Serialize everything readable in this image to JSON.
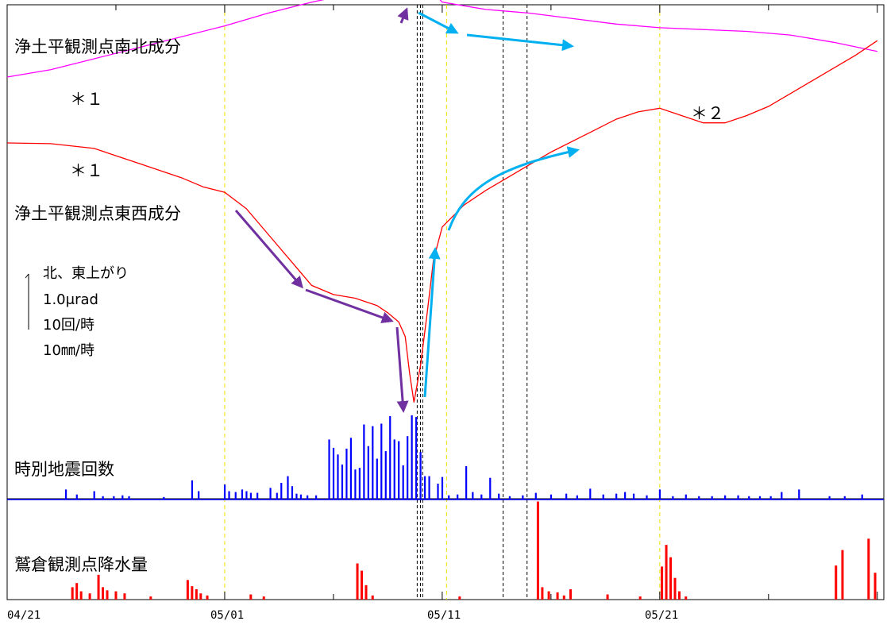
{
  "chart_data": {
    "type": "line",
    "x_axis": {
      "start": "04/21",
      "end": "06/01",
      "tick_labels": [
        "04/21",
        "05/01",
        "05/11",
        "05/21"
      ],
      "tick_days": [
        0,
        10,
        20,
        30
      ]
    },
    "guides": {
      "yellow_dashed_days": [
        10,
        20.2,
        30
      ],
      "black_dashed_days": [
        18.85,
        19.0,
        19.1,
        22.8,
        23.9
      ],
      "colors": {
        "yellow": "#f0e000",
        "black": "#000000"
      }
    },
    "series": [
      {
        "name": "浄土平観測点南北成分",
        "color": "#ff00ff",
        "unit": "µrad",
        "x": [
          0,
          2,
          4,
          6,
          8,
          10,
          12,
          14,
          16,
          17,
          18,
          18.5,
          18.9,
          19.3,
          20,
          21,
          22,
          23,
          24,
          26,
          28,
          30,
          32,
          34,
          36,
          38,
          40
        ],
        "y": [
          0,
          0.2,
          0.5,
          0.8,
          1.1,
          1.4,
          1.75,
          2.05,
          2.3,
          2.45,
          2.55,
          2.65,
          2.9,
          2.5,
          2.05,
          1.95,
          1.85,
          1.8,
          1.75,
          1.6,
          1.45,
          1.35,
          1.3,
          1.25,
          1.15,
          0.95,
          0.7
        ]
      },
      {
        "name": "浄土平観測点東西成分",
        "color": "#ff0000",
        "unit": "µrad",
        "x": [
          0,
          2,
          4,
          5,
          6,
          7,
          8,
          9,
          10,
          11,
          12,
          13,
          14,
          15,
          16,
          17,
          17.5,
          18,
          18.3,
          18.5,
          18.7,
          19.0,
          19.3,
          19.6,
          20,
          21,
          22,
          23,
          24,
          25,
          26,
          27,
          28,
          29,
          30,
          31,
          32,
          33,
          34,
          35,
          36,
          37,
          38,
          39,
          40
        ],
        "y": [
          5.5,
          5.48,
          5.35,
          5.15,
          4.95,
          4.75,
          4.55,
          4.3,
          4.15,
          3.7,
          3.0,
          2.3,
          1.6,
          1.35,
          1.25,
          1.05,
          0.85,
          0.6,
          0.2,
          -0.8,
          -1.6,
          -0.6,
          0.8,
          2.3,
          3.2,
          3.8,
          4.2,
          4.55,
          4.9,
          5.25,
          5.55,
          5.85,
          6.15,
          6.35,
          6.45,
          6.25,
          6.05,
          6.05,
          6.25,
          6.5,
          6.85,
          7.2,
          7.55,
          7.9,
          8.3
        ]
      },
      {
        "name": "時別地震回数",
        "color": "#0000ff",
        "unit": "回/時",
        "x": [
          2.7,
          3.2,
          4.0,
          4.4,
          4.9,
          5.3,
          5.6,
          7.2,
          8.5,
          8.8,
          10.0,
          10.2,
          10.5,
          10.8,
          11.0,
          11.2,
          11.5,
          12.1,
          12.4,
          12.6,
          12.9,
          13.1,
          13.3,
          13.5,
          13.8,
          14.2,
          14.8,
          15.0,
          15.2,
          15.4,
          15.6,
          15.8,
          16.0,
          16.2,
          16.4,
          16.6,
          16.8,
          17.0,
          17.2,
          17.4,
          17.6,
          17.8,
          18.0,
          18.2,
          18.4,
          18.6,
          18.8,
          19.0,
          19.2,
          19.4,
          19.8,
          20.0,
          20.3,
          20.7,
          21.1,
          21.4,
          21.8,
          22.2,
          22.6,
          23.1,
          23.7,
          24.3,
          25.0,
          25.7,
          26.2,
          26.8,
          27.4,
          28.0,
          28.4,
          28.8,
          29.4,
          30.0,
          30.6,
          31.2,
          31.8,
          32.4,
          33.0,
          33.6,
          34.1,
          34.6,
          35.1,
          35.6,
          36.4,
          37.8,
          38.5,
          39.3
        ],
        "values": [
          1.2,
          0.6,
          1.0,
          0.4,
          0.4,
          0.5,
          0.4,
          0.3,
          2.3,
          1.0,
          1.8,
          1.0,
          0.9,
          1.2,
          1.0,
          0.8,
          0.8,
          1.4,
          0.8,
          2.0,
          2.8,
          1.6,
          0.7,
          0.6,
          0.5,
          0.5,
          7.2,
          6.2,
          5.4,
          4.2,
          6.1,
          7.4,
          3.6,
          3.8,
          9.0,
          6.4,
          8.8,
          4.9,
          9.1,
          5.8,
          10.0,
          7.2,
          7.0,
          4.1,
          7.6,
          10.1,
          9.9,
          5.7,
          2.8,
          2.8,
          1.9,
          2.7,
          0.5,
          0.6,
          4.0,
          0.9,
          0.6,
          2.6,
          0.7,
          0.4,
          0.5,
          0.8,
          0.6,
          0.7,
          0.5,
          1.3,
          0.6,
          0.7,
          0.9,
          0.7,
          0.5,
          1.2,
          0.4,
          0.6,
          0.4,
          0.4,
          0.5,
          0.5,
          0.4,
          0.4,
          0.4,
          0.9,
          1.2,
          0.4,
          0.4,
          0.6
        ]
      },
      {
        "name": "鷲倉観測点降水量",
        "color": "#ff0000",
        "unit": "mm/時",
        "x": [
          3.0,
          3.2,
          3.4,
          3.8,
          4.2,
          4.4,
          4.6,
          5.0,
          5.4,
          6.6,
          8.3,
          8.5,
          8.7,
          8.9,
          9.2,
          11.2,
          11.8,
          16.1,
          16.3,
          16.5,
          16.8,
          20.8,
          24.4,
          24.6,
          24.9,
          25.3,
          25.6,
          25.9,
          27.6,
          29.1,
          30.1,
          30.3,
          30.5,
          30.7,
          30.9,
          31.2,
          38.1,
          38.4,
          39.6,
          39.9
        ],
        "values": [
          1.2,
          1.6,
          0.8,
          0.6,
          2.4,
          1.2,
          0.9,
          0.8,
          0.6,
          0.3,
          1.9,
          1.3,
          1.0,
          0.6,
          0.4,
          0.5,
          0.3,
          3.5,
          2.8,
          1.4,
          0.4,
          0.3,
          9.5,
          1.2,
          0.8,
          0.7,
          0.4,
          1.0,
          0.5,
          0.3,
          3.2,
          5.3,
          4.1,
          2.1,
          0.8,
          0.3,
          3.3,
          4.8,
          5.9,
          2.6
        ]
      }
    ],
    "annotations": [
      "＊１",
      "＊１",
      "＊２"
    ],
    "scale_legend": [
      "北、東上がり",
      "1.0μrad",
      "10回/時",
      "10㎜/時"
    ],
    "arrow_colors": {
      "purple": "#7030a0",
      "cyan": "#00b0f0"
    }
  }
}
